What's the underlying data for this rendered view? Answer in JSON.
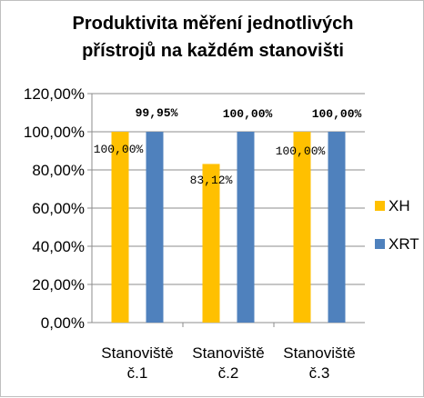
{
  "chart_data": {
    "type": "bar",
    "title": [
      "Produktivita měření jednotlivých",
      "přístrojů na každém stanovišti"
    ],
    "categories": [
      [
        "Stanoviště",
        "č.1"
      ],
      [
        "Stanoviště",
        "č.2"
      ],
      [
        "Stanoviště",
        "č.3"
      ]
    ],
    "series": [
      {
        "name": "XH",
        "color": "#FFC000",
        "values": [
          100.0,
          83.12,
          100.0
        ],
        "labels": [
          "100,00%",
          "83,12%",
          "100,00%"
        ]
      },
      {
        "name": "XRT",
        "color": "#4F81BD",
        "values": [
          99.95,
          100.0,
          100.0
        ],
        "labels": [
          "99,95%",
          "100,00%",
          "100,00%"
        ]
      }
    ],
    "yticks": [
      "0,00%",
      "20,00%",
      "40,00%",
      "60,00%",
      "80,00%",
      "100,00%",
      "120,00%"
    ],
    "ylim": [
      0,
      120
    ],
    "ytick_step": 20,
    "grid": true,
    "legend_position": "right"
  }
}
